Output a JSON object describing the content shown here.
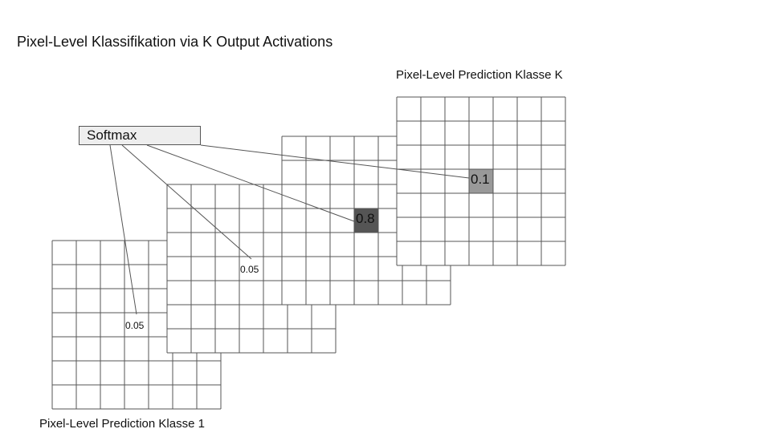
{
  "title": "Pixel-Level Klassifikation via K Output Activations",
  "softmax_label": "Softmax",
  "grids": [
    {
      "id": "klasse-1",
      "label": "Pixel-Level Prediction Klasse 1",
      "highlight_value": "0.05",
      "highlight_color": "#ffffff"
    },
    {
      "id": "klasse-2",
      "label": "",
      "highlight_value": "0.05",
      "highlight_color": "#ffffff"
    },
    {
      "id": "klasse-3",
      "label": "",
      "highlight_value": "0.8",
      "highlight_color": "#555555"
    },
    {
      "id": "klasse-k",
      "label": "Pixel-Level Prediction Klasse K",
      "highlight_value": "0.1",
      "highlight_color": "#999999"
    }
  ],
  "colors": {
    "grid_line": "#555555",
    "softmax_fill": "#eeeeee"
  }
}
